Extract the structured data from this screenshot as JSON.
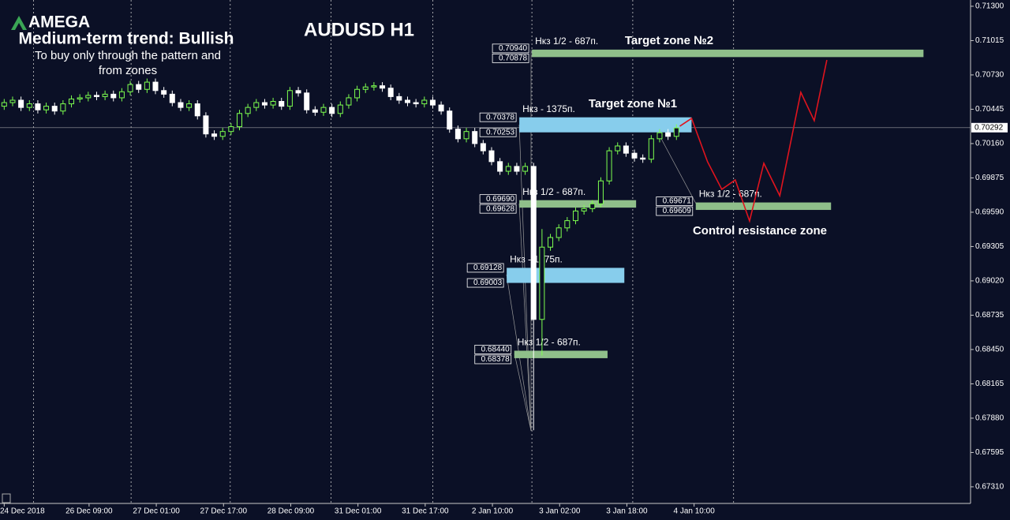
{
  "header": {
    "logo": "AMEGA",
    "trend": "Medium-term trend: Bullish",
    "note": [
      "To buy only through the pattern  and",
      "from zones"
    ]
  },
  "chart_data": {
    "type": "candlestick",
    "title": "AUDUSD H1",
    "up_color": "#7dff4f",
    "down_color": "#ffffff",
    "open": [
      0.7047,
      0.705,
      0.7052,
      0.7046,
      0.7049,
      0.7044,
      0.7047,
      0.7043,
      0.7049,
      0.7053,
      0.7054,
      0.7056,
      0.7055,
      0.7057,
      0.7054,
      0.7059,
      0.7065,
      0.7061,
      0.7067,
      0.706,
      0.7057,
      0.705,
      0.7046,
      0.7049,
      0.7039,
      0.7024,
      0.7022,
      0.7026,
      0.703,
      0.7041,
      0.7046,
      0.705,
      0.7048,
      0.7051,
      0.7047,
      0.706,
      0.7058,
      0.7044,
      0.7042,
      0.7046,
      0.7041,
      0.7048,
      0.7054,
      0.7061,
      0.7063,
      0.7064,
      0.7062,
      0.7055,
      0.7052,
      0.705,
      0.7049,
      0.7052,
      0.7048,
      0.7043,
      0.7028,
      0.702,
      0.7026,
      0.7016,
      0.701,
      0.7001,
      0.6993,
      0.6997,
      0.6993,
      0.6997,
      0.687,
      0.693,
      0.6938,
      0.6946,
      0.6952,
      0.696,
      0.6962,
      0.6966,
      0.6985,
      0.701,
      0.7014,
      0.7008,
      0.7004,
      0.7003,
      0.702,
      0.7025,
      0.7022
    ],
    "high": [
      0.7053,
      0.7055,
      0.7055,
      0.7052,
      0.7052,
      0.705,
      0.705,
      0.7052,
      0.7056,
      0.7057,
      0.7059,
      0.7059,
      0.706,
      0.706,
      0.7062,
      0.7068,
      0.7068,
      0.707,
      0.707,
      0.7063,
      0.706,
      0.7053,
      0.7052,
      0.7052,
      0.7042,
      0.7027,
      0.7029,
      0.7033,
      0.7044,
      0.7049,
      0.7053,
      0.7053,
      0.7054,
      0.7054,
      0.7063,
      0.7063,
      0.7061,
      0.7047,
      0.7049,
      0.7049,
      0.7051,
      0.7057,
      0.7064,
      0.7066,
      0.7067,
      0.7067,
      0.7065,
      0.7058,
      0.7055,
      0.7053,
      0.7055,
      0.7055,
      0.7051,
      0.7046,
      0.7031,
      0.7029,
      0.7029,
      0.7019,
      0.7013,
      0.7004,
      0.7,
      0.7,
      0.7,
      0.7,
      0.6945,
      0.6941,
      0.6949,
      0.6955,
      0.6963,
      0.6965,
      0.6969,
      0.6988,
      0.7013,
      0.7017,
      0.7017,
      0.7011,
      0.7007,
      0.7023,
      0.7028,
      0.7028,
      0.7032
    ],
    "low": [
      0.7044,
      0.7047,
      0.7043,
      0.7043,
      0.7041,
      0.7041,
      0.704,
      0.704,
      0.7046,
      0.705,
      0.7051,
      0.7052,
      0.7052,
      0.7051,
      0.7051,
      0.7056,
      0.7058,
      0.7058,
      0.7057,
      0.7054,
      0.7047,
      0.7043,
      0.7043,
      0.7036,
      0.7021,
      0.7019,
      0.7019,
      0.7023,
      0.7027,
      0.7038,
      0.7043,
      0.7045,
      0.7045,
      0.7044,
      0.7044,
      0.7055,
      0.7041,
      0.7039,
      0.7039,
      0.7038,
      0.7038,
      0.7045,
      0.7051,
      0.7058,
      0.706,
      0.7059,
      0.7052,
      0.7049,
      0.7047,
      0.7046,
      0.7046,
      0.7045,
      0.704,
      0.7025,
      0.7017,
      0.7017,
      0.7013,
      0.7007,
      0.6998,
      0.699,
      0.699,
      0.699,
      0.699,
      0.6778,
      0.684,
      0.6927,
      0.6935,
      0.6943,
      0.6949,
      0.6957,
      0.6959,
      0.6963,
      0.6982,
      0.7007,
      0.7005,
      0.7001,
      0.7,
      0.7,
      0.7017,
      0.7019,
      0.7019
    ],
    "close": [
      0.705,
      0.7052,
      0.7046,
      0.7049,
      0.7044,
      0.7047,
      0.7043,
      0.7049,
      0.7053,
      0.7054,
      0.7056,
      0.7055,
      0.7057,
      0.7054,
      0.7059,
      0.7065,
      0.7061,
      0.7067,
      0.706,
      0.7057,
      0.705,
      0.7046,
      0.7049,
      0.7039,
      0.7024,
      0.7022,
      0.7026,
      0.703,
      0.7041,
      0.7046,
      0.705,
      0.7048,
      0.7051,
      0.7047,
      0.706,
      0.7058,
      0.7044,
      0.7042,
      0.7046,
      0.7041,
      0.7048,
      0.7054,
      0.7061,
      0.7063,
      0.7064,
      0.7062,
      0.7055,
      0.7052,
      0.705,
      0.7049,
      0.7052,
      0.7048,
      0.7043,
      0.7028,
      0.702,
      0.7026,
      0.7016,
      0.701,
      0.7001,
      0.6993,
      0.6997,
      0.6993,
      0.6997,
      0.687,
      0.693,
      0.6938,
      0.6946,
      0.6952,
      0.696,
      0.6962,
      0.6966,
      0.6985,
      0.701,
      0.7014,
      0.7008,
      0.7004,
      0.7003,
      0.702,
      0.7025,
      0.7022,
      0.7029
    ],
    "xlim": [
      -0.5,
      115
    ],
    "xticks": [
      {
        "value": 0,
        "label": "24 Dec 2018"
      },
      {
        "value": 10.1,
        "label": "26 Dec 09:00"
      },
      {
        "value": 18.1,
        "label": "27 Dec 01:00"
      },
      {
        "value": 26.1,
        "label": "27 Dec 17:00"
      },
      {
        "value": 34.1,
        "label": "28 Dec 09:00"
      },
      {
        "value": 42.1,
        "label": "31 Dec 01:00"
      },
      {
        "value": 50.1,
        "label": "31 Dec 17:00"
      },
      {
        "value": 58.1,
        "label": "2 Jan 10:00"
      },
      {
        "value": 66.1,
        "label": "3 Jan 02:00"
      },
      {
        "value": 74.1,
        "label": "3 Jan 18:00"
      },
      {
        "value": 82.1,
        "label": "4 Jan 10:00"
      }
    ],
    "xgrid": [
      3.5,
      15.1,
      26.9,
      38.9,
      51,
      62.8,
      74.8,
      86.8
    ],
    "ylim": [
      0.67172,
      0.71352
    ],
    "yticks": [
      {
        "value": 0.713,
        "label": "0.71300"
      },
      {
        "value": 0.71015,
        "label": "0.71015"
      },
      {
        "value": 0.7073,
        "label": "0.70730"
      },
      {
        "value": 0.70445,
        "label": "0.70445"
      },
      {
        "value": 0.7016,
        "label": "0.70160"
      },
      {
        "value": 0.69875,
        "label": "0.69875"
      },
      {
        "value": 0.6959,
        "label": "0.69590"
      },
      {
        "value": 0.69305,
        "label": "0.69305"
      },
      {
        "value": 0.6902,
        "label": "0.69020"
      },
      {
        "value": 0.68735,
        "label": "0.68735"
      },
      {
        "value": 0.6845,
        "label": "0.68450"
      },
      {
        "value": 0.68165,
        "label": "0.68165"
      },
      {
        "value": 0.6788,
        "label": "0.67880"
      },
      {
        "value": 0.67595,
        "label": "0.67595"
      },
      {
        "value": 0.6731,
        "label": "0.67310"
      }
    ],
    "last_price": {
      "value": 0.70292,
      "label": "0.70292"
    },
    "zones": [
      {
        "name": "Нкз 1/2 - 687п.",
        "title": "Target zone №2",
        "color": "#8fbf8a",
        "x": [
          62.8,
          109.4
        ],
        "levels": [
          {
            "value": 0.7094,
            "label": "0.70940"
          },
          {
            "value": 0.70878,
            "label": "0.70878"
          }
        ]
      },
      {
        "name": "Нкз - 1375п.",
        "title": "Target zone №1",
        "color": "#87cdec",
        "x": [
          61.3,
          81.8
        ],
        "levels": [
          {
            "value": 0.70378,
            "label": "0.70378"
          },
          {
            "value": 0.70253,
            "label": "0.70253"
          }
        ]
      },
      {
        "name": "Нкз 1/2 - 687п.",
        "color": "#8fbf8a",
        "x": [
          61.3,
          75.2
        ],
        "levels": [
          {
            "value": 0.6969,
            "label": "0.69690"
          },
          {
            "value": 0.69628,
            "label": "0.69628"
          }
        ]
      },
      {
        "name": "Нкз 1/2 - 687п.",
        "title": "Control resistance zone",
        "color": "#8fbf8a",
        "x": [
          82.3,
          98.4
        ],
        "levels": [
          {
            "value": 0.69671,
            "label": "0.69671"
          },
          {
            "value": 0.69609,
            "label": "0.69609"
          }
        ]
      },
      {
        "name": "Нкз - 1375п.",
        "color": "#87cdec",
        "x": [
          59.8,
          73.8
        ],
        "levels": [
          {
            "value": 0.69128,
            "label": "0.69128"
          },
          {
            "value": 0.69003,
            "label": "0.69003"
          }
        ]
      },
      {
        "name": "Нкз 1/2 - 687п.",
        "color": "#8fbf8a",
        "x": [
          60.7,
          71.8
        ],
        "levels": [
          {
            "value": 0.6844,
            "label": "0.68440"
          },
          {
            "value": 0.68378,
            "label": "0.68378"
          }
        ]
      }
    ],
    "forecast": {
      "color": "#e0141e",
      "x": [
        80.4,
        81.8,
        83.7,
        85.4,
        87,
        88.7,
        90.4,
        92.3,
        94.8,
        96.4,
        97.9
      ],
      "values": [
        0.70304,
        0.70369,
        0.70009,
        0.6978,
        0.69858,
        0.69517,
        0.69996,
        0.69727,
        0.70585,
        0.7035,
        0.70854
      ]
    }
  }
}
